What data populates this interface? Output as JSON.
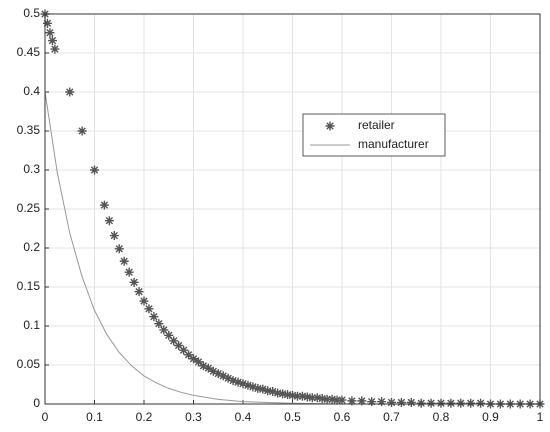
{
  "chart_data": {
    "type": "scatter-line",
    "xlim": [
      0,
      1
    ],
    "xticks": [
      0,
      0.1,
      0.2,
      0.3,
      0.4,
      0.5,
      0.6,
      0.7,
      0.8,
      0.9,
      1
    ],
    "ylim": [
      0,
      0.5
    ],
    "yticks": [
      0,
      0.05,
      0.1,
      0.15,
      0.2,
      0.25,
      0.3,
      0.35,
      0.4,
      0.45,
      0.5
    ],
    "grid": true,
    "series": [
      {
        "name": "retailer",
        "color": "#555555",
        "marker": "asterisk",
        "x": [
          0,
          0.005,
          0.01,
          0.015,
          0.02,
          0.05,
          0.075,
          0.1,
          0.12,
          0.13,
          0.14,
          0.15,
          0.16,
          0.17,
          0.18,
          0.19,
          0.2,
          0.21,
          0.22,
          0.23,
          0.24,
          0.25,
          0.26,
          0.27,
          0.28,
          0.29,
          0.3,
          0.31,
          0.32,
          0.33,
          0.34,
          0.35,
          0.36,
          0.37,
          0.38,
          0.39,
          0.4,
          0.41,
          0.42,
          0.43,
          0.44,
          0.45,
          0.46,
          0.47,
          0.48,
          0.49,
          0.5,
          0.51,
          0.52,
          0.53,
          0.54,
          0.55,
          0.56,
          0.57,
          0.58,
          0.59,
          0.6,
          0.62,
          0.64,
          0.66,
          0.68,
          0.7,
          0.72,
          0.74,
          0.76,
          0.78,
          0.8,
          0.82,
          0.84,
          0.86,
          0.88,
          0.9,
          0.92,
          0.94,
          0.96,
          0.98,
          1
        ],
        "values": [
          0.5,
          0.488,
          0.476,
          0.466,
          0.455,
          0.4,
          0.35,
          0.3,
          0.255,
          0.235,
          0.216,
          0.199,
          0.183,
          0.169,
          0.156,
          0.144,
          0.132,
          0.122,
          0.112,
          0.103,
          0.095,
          0.088,
          0.081,
          0.075,
          0.069,
          0.063,
          0.058,
          0.054,
          0.049,
          0.046,
          0.042,
          0.039,
          0.036,
          0.033,
          0.03,
          0.028,
          0.026,
          0.024,
          0.022,
          0.02,
          0.019,
          0.017,
          0.016,
          0.014,
          0.013,
          0.012,
          0.011,
          0.01,
          0.01,
          0.009,
          0.008,
          0.008,
          0.007,
          0.006,
          0.006,
          0.005,
          0.005,
          0.004,
          0.004,
          0.003,
          0.003,
          0.002,
          0.002,
          0.002,
          0.001,
          0.001,
          0.001,
          0.001,
          0.001,
          0.001,
          0.001,
          0,
          0,
          0,
          0,
          0,
          0
        ]
      },
      {
        "name": "manufacturer",
        "color": "#999999",
        "marker": "line",
        "x": [
          0,
          0.025,
          0.05,
          0.075,
          0.1,
          0.125,
          0.15,
          0.175,
          0.2,
          0.225,
          0.25,
          0.275,
          0.3,
          0.35,
          0.4,
          0.45,
          0.5,
          0.6,
          0.8,
          1
        ],
        "values": [
          0.4,
          0.296,
          0.219,
          0.163,
          0.12,
          0.089,
          0.066,
          0.049,
          0.036,
          0.027,
          0.02,
          0.015,
          0.011,
          0.006,
          0.003,
          0.002,
          0.001,
          0,
          0,
          0
        ]
      }
    ]
  }
}
